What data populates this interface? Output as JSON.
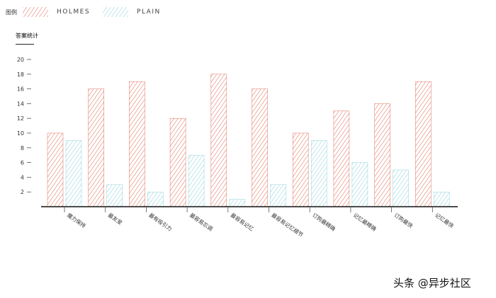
{
  "legend": {
    "title": "图例",
    "items": [
      {
        "name": "HOLMES",
        "color": "#e0745e"
      },
      {
        "name": "PLAIN",
        "color": "#8fd3dc"
      }
    ]
  },
  "chart_data": {
    "type": "bar",
    "title": "答案统计",
    "xlabel": "",
    "ylabel": "",
    "ylim": [
      0,
      21
    ],
    "yticks": [
      2,
      4,
      6,
      8,
      10,
      12,
      14,
      16,
      18,
      20
    ],
    "grid": false,
    "legend_position": "top-left",
    "categories": [
      "魔力保持",
      "最友爱",
      "最有吸引力",
      "最容易忘调",
      "最容易记忆",
      "最容易记忆细节",
      "订购最精确",
      "记忆最精确",
      "订购最快",
      "记忆最快"
    ],
    "series": [
      {
        "name": "HOLMES",
        "color": "#e0745e",
        "values": [
          10,
          16,
          17,
          12,
          18,
          16,
          10,
          13,
          14,
          17
        ]
      },
      {
        "name": "PLAIN",
        "color": "#8fd3dc",
        "values": [
          9,
          3,
          2,
          7,
          1,
          3,
          9,
          6,
          5,
          2
        ]
      }
    ]
  },
  "watermark": "头条 @异步社区"
}
